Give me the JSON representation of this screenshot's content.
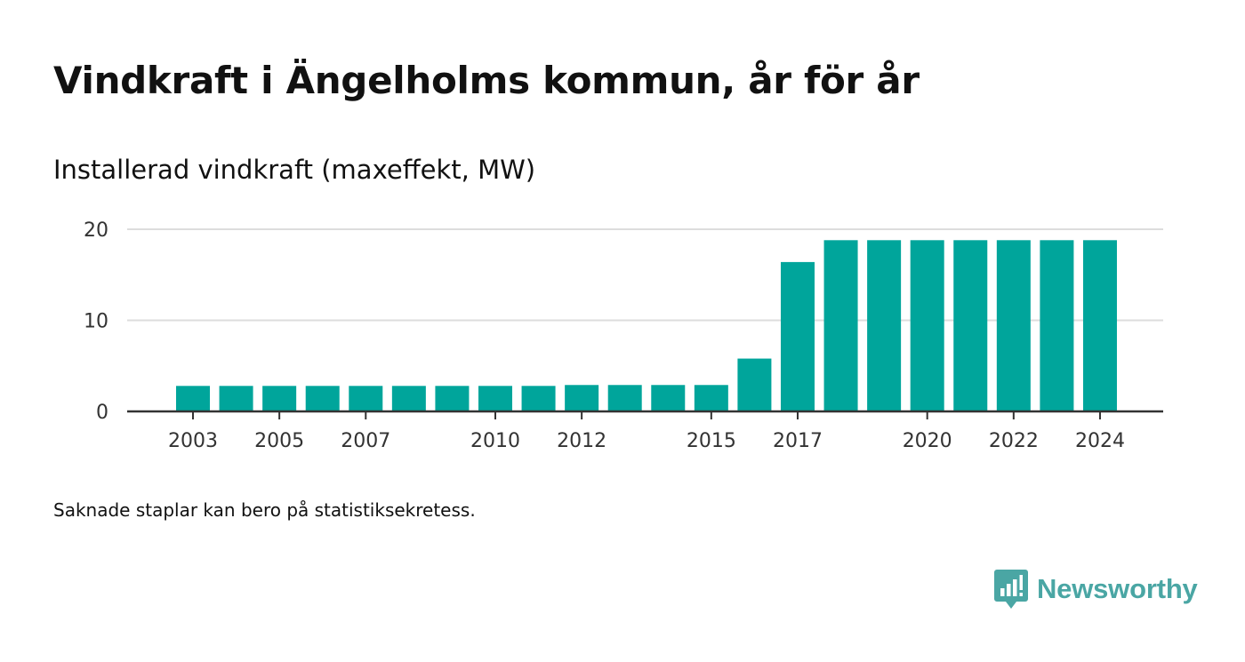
{
  "title": "Vindkraft i Ängelholms kommun, år för år",
  "subtitle": "Installerad vindkraft (maxeffekt, MW)",
  "footnote": "Saknade staplar kan bero på statistiksekretess.",
  "brand": {
    "name": "Newsworthy",
    "icon": "newsworthy-logo-icon",
    "color": "#4aa6a4"
  },
  "colors": {
    "bar": "#00a59b",
    "grid": "#dddddd",
    "axis": "#333333"
  },
  "chart_data": {
    "type": "bar",
    "title": "Vindkraft i Ängelholms kommun, år för år",
    "ylabel": "Installerad vindkraft (maxeffekt, MW)",
    "xlabel": "",
    "categories": [
      "2003",
      "2004",
      "2005",
      "2006",
      "2007",
      "2008",
      "2009",
      "2010",
      "2011",
      "2012",
      "2013",
      "2014",
      "2015",
      "2016",
      "2017",
      "2018",
      "2019",
      "2020",
      "2021",
      "2022",
      "2023",
      "2024"
    ],
    "values": [
      2.8,
      2.8,
      2.8,
      2.8,
      2.8,
      2.8,
      2.8,
      2.8,
      2.8,
      2.9,
      2.9,
      2.9,
      2.9,
      5.8,
      16.4,
      18.8,
      18.8,
      18.8,
      18.8,
      18.8,
      18.8,
      18.8
    ],
    "xtick_labels": [
      "2003",
      "2005",
      "2007",
      "2010",
      "2012",
      "2015",
      "2017",
      "2020",
      "2022",
      "2024"
    ],
    "yticks": [
      0,
      10,
      20
    ],
    "ylim": [
      0,
      20
    ],
    "grid": true,
    "legend": "none"
  }
}
